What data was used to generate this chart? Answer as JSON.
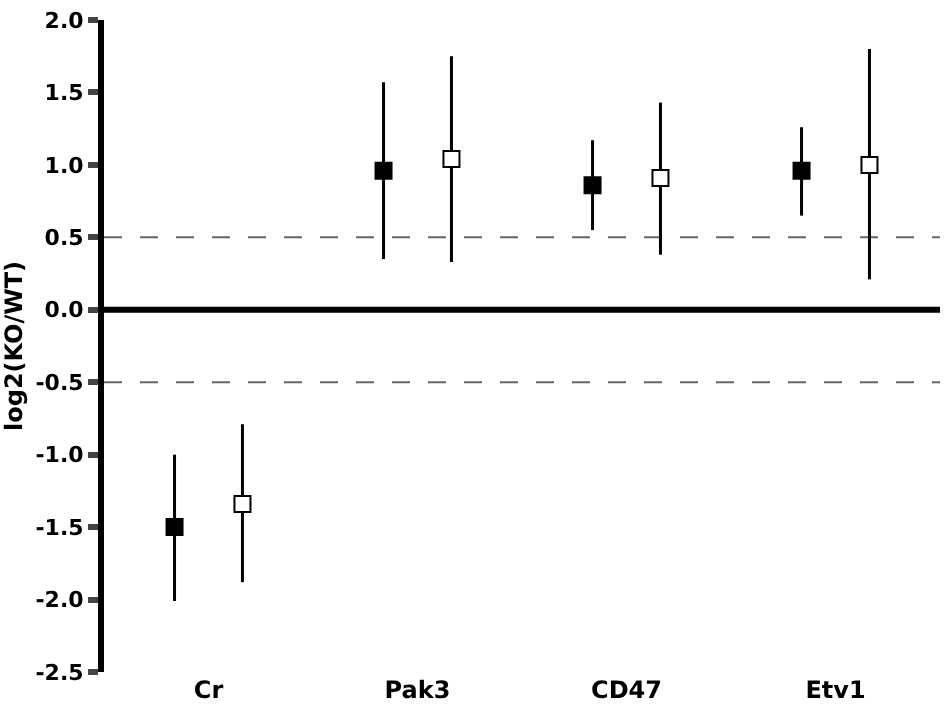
{
  "chart_data": {
    "type": "scatter",
    "ylabel": "log2(KO/WT)",
    "categories": [
      "Cr",
      "Pak3",
      "CD47",
      "Etv1"
    ],
    "series": [
      {
        "color": "#000000",
        "marker": "square",
        "values": [
          -1.5,
          0.96,
          0.86,
          0.96
        ],
        "errors": [
          [
            -2.01,
            -1.0
          ],
          [
            0.35,
            1.57
          ],
          [
            0.55,
            1.17
          ],
          [
            0.65,
            1.26
          ]
        ]
      },
      {
        "color": "#ffffff",
        "marker": "square",
        "values": [
          -1.34,
          1.04,
          0.91,
          1.0
        ],
        "errors": [
          [
            -1.88,
            -0.79
          ],
          [
            0.33,
            1.75
          ],
          [
            0.38,
            1.43
          ],
          [
            0.21,
            1.8
          ]
        ]
      }
    ],
    "ylim": [
      -2.5,
      2.0
    ],
    "yticks": [
      {
        "value": -2.5,
        "label": "-2.5"
      },
      {
        "value": -2.0,
        "label": "-2.0"
      },
      {
        "value": -1.5,
        "label": "-1.5"
      },
      {
        "value": -1.0,
        "label": "-1.0"
      },
      {
        "value": -0.5,
        "label": "-0.5"
      },
      {
        "value": 0,
        "label": "0.0"
      },
      {
        "value": 0.5,
        "label": "0.5"
      },
      {
        "value": 1.0,
        "label": "1.0"
      },
      {
        "value": 1.5,
        "label": "1.5"
      },
      {
        "value": 2.0,
        "label": "2.0"
      }
    ],
    "ref_lines": [
      {
        "axis": "y",
        "value": 0.5,
        "color": "#666666",
        "line_style": "dashed"
      },
      {
        "axis": "y",
        "value": 0,
        "color": "#000000",
        "line_style": "solid"
      },
      {
        "axis": "y",
        "value": -0.5,
        "color": "#666666",
        "line_style": "dashed"
      }
    ]
  }
}
